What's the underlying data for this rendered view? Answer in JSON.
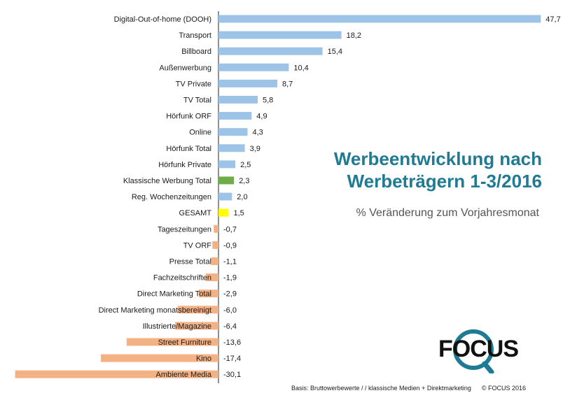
{
  "chart_data": {
    "type": "bar",
    "orientation": "horizontal",
    "categories": [
      "Digital-Out-of-home (DOOH)",
      "Transport",
      "Billboard",
      "Außenwerbung",
      "TV Private",
      "TV Total",
      "Hörfunk ORF",
      "Online",
      "Hörfunk Total",
      "Hörfunk Private",
      "Klassische Werbung Total",
      "Reg. Wochenzeitungen",
      "GESAMT",
      "Tageszeitungen",
      "TV ORF",
      "Presse Total",
      "Fachzeitschriften",
      "Direct Marketing Total",
      "Direct Marketing monatsbereinigt",
      "Illustrierte/Magazine",
      "Street Furniture",
      "Kino",
      "Ambiente Media"
    ],
    "values": [
      47.7,
      18.2,
      15.4,
      10.4,
      8.7,
      5.8,
      4.9,
      4.3,
      3.9,
      2.5,
      2.3,
      2.0,
      1.5,
      -0.7,
      -0.9,
      -1.1,
      -1.9,
      -2.9,
      -6.0,
      -6.4,
      -13.6,
      -17.4,
      -30.1
    ],
    "value_labels": [
      "47,7",
      "18,2",
      "15,4",
      "10,4",
      "8,7",
      "5,8",
      "4,9",
      "4,3",
      "3,9",
      "2,5",
      "2,3",
      "2,0",
      "1,5",
      "-0,7",
      "-0,9",
      "-1,1",
      "-1,9",
      "-2,9",
      "-6,0",
      "-6,4",
      "-13,6",
      "-17,4",
      "-30,1"
    ],
    "colors": {
      "positive": "#9dc3e6",
      "negative": "#f4b183",
      "highlight_klassische": "#70ad47",
      "highlight_gesamt": "#ffff00"
    },
    "highlights": {
      "Klassische Werbung Total": "highlight_klassische",
      "GESAMT": "highlight_gesamt"
    },
    "title": "Werbeentwicklung nach Werbeträgern 1-3/2016",
    "subtitle": "% Veränderung zum Vorjahresmonat",
    "grid": false,
    "legend": "none"
  },
  "header": {
    "title_line1": "Werbeentwicklung nach",
    "title_line2": "Werbeträgern 1-3/2016",
    "subtitle": "% Veränderung zum Vorjahresmonat"
  },
  "footer": {
    "note": "Basis: Bruttowerbewerte / / klassische Medien + Direktmarketing",
    "copyright": "© FOCUS 2016"
  },
  "logo": {
    "text": "FOCUS",
    "colors": {
      "dark": "#111111",
      "teal": "#1f7a94"
    }
  }
}
